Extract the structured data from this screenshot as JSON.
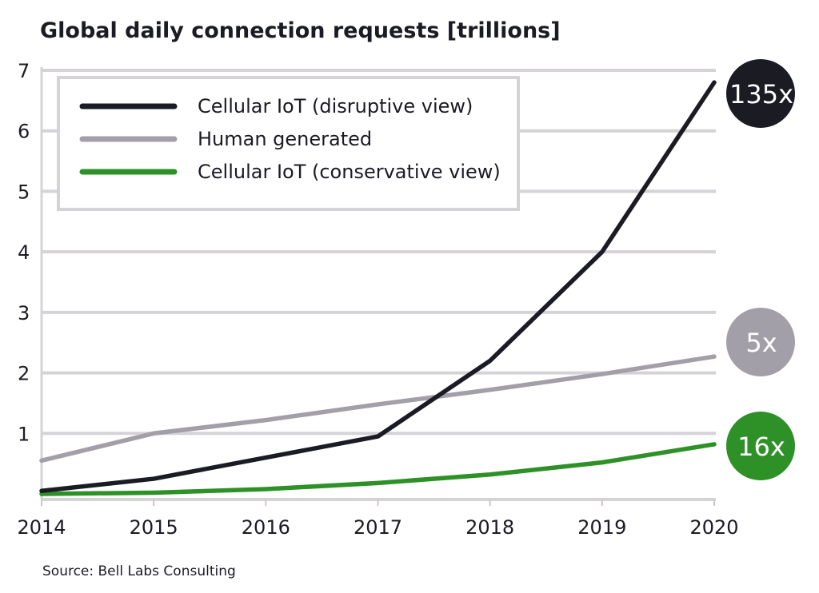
{
  "chart_data": {
    "type": "line",
    "title": "Global daily connection requests [trillions]",
    "xlabel": "",
    "ylabel": "",
    "x": [
      2014,
      2015,
      2016,
      2017,
      2018,
      2019,
      2020
    ],
    "x_tick_labels": [
      "2014",
      "2015",
      "2016",
      "2017",
      "2018",
      "2019",
      "2020"
    ],
    "ylim": [
      0,
      7
    ],
    "y_ticks": [
      1,
      2,
      3,
      4,
      5,
      6,
      7
    ],
    "y_tick_labels": [
      "1",
      "2",
      "3",
      "4",
      "5",
      "6",
      "7"
    ],
    "grid": true,
    "legend_position": "top-left",
    "series": [
      {
        "name": "Cellular IoT (disruptive view)",
        "color": "#1b1b24",
        "values": [
          0.05,
          0.25,
          0.6,
          0.95,
          2.2,
          4.0,
          6.8
        ],
        "badge": "135x"
      },
      {
        "name": "Human generated",
        "color": "#a39fa8",
        "values": [
          0.55,
          1.0,
          1.22,
          1.48,
          1.72,
          1.98,
          2.27
        ],
        "badge": "5x"
      },
      {
        "name": "Cellular IoT (conservative view)",
        "color": "#2e9127",
        "values": [
          0.0,
          0.02,
          0.08,
          0.18,
          0.32,
          0.52,
          0.82
        ],
        "badge": "16x"
      }
    ],
    "source": "Source: Bell Labs Consulting"
  }
}
